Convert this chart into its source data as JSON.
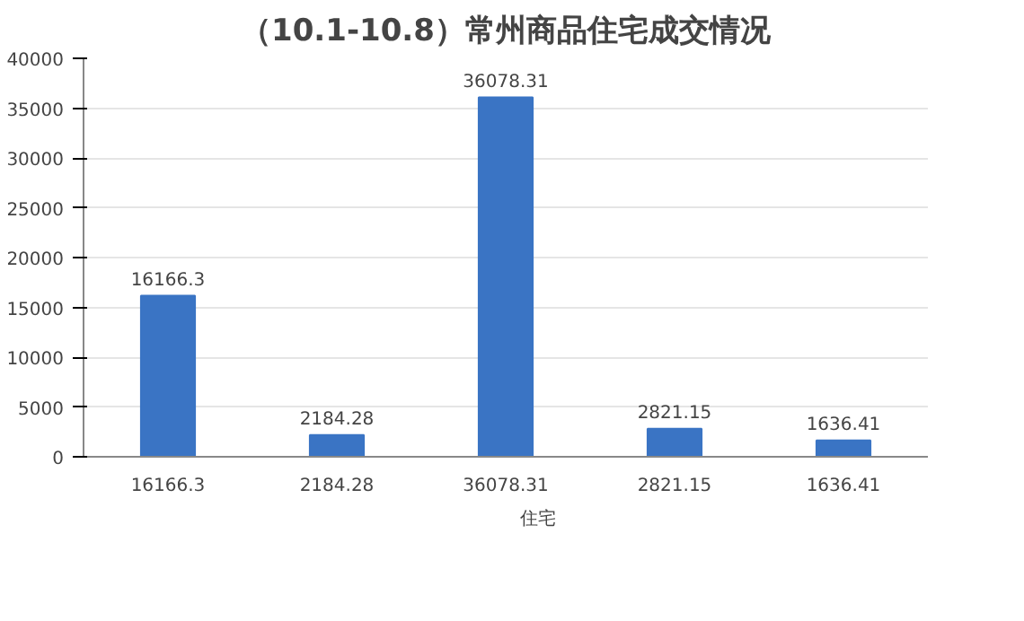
{
  "chart_data": {
    "type": "bar",
    "title": "（10.1-10.8）常州商品住宅成交情况",
    "categories": [
      "16166.3",
      "2184.28",
      "36078.31",
      "2821.15",
      "1636.41"
    ],
    "series": [
      {
        "name": "住宅",
        "color": "#3a74c4",
        "values": [
          16166.3,
          2184.28,
          36078.31,
          2821.15,
          1636.41
        ]
      }
    ],
    "ylim": [
      0,
      40000
    ],
    "yticks": [
      0,
      5000,
      10000,
      15000,
      20000,
      25000,
      30000,
      35000,
      40000
    ],
    "grid": "y",
    "legend": "bottom",
    "data_labels": true
  }
}
